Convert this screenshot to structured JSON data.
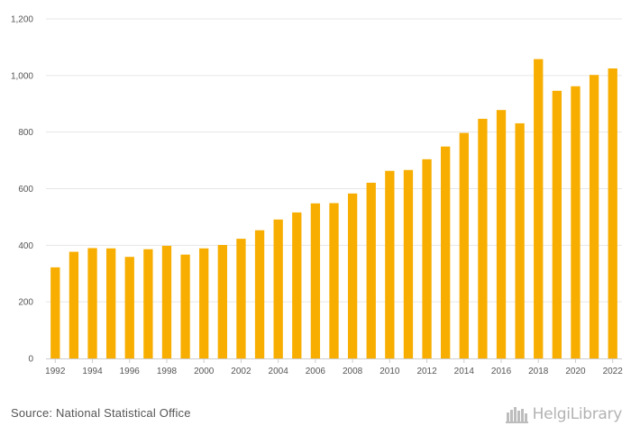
{
  "chart_data": {
    "type": "bar",
    "categories": [
      "1992",
      "1993",
      "1994",
      "1995",
      "1996",
      "1997",
      "1998",
      "1999",
      "2000",
      "2001",
      "2002",
      "2003",
      "2004",
      "2005",
      "2006",
      "2007",
      "2008",
      "2009",
      "2010",
      "2011",
      "2012",
      "2013",
      "2014",
      "2015",
      "2016",
      "2017",
      "2018",
      "2019",
      "2020",
      "2021",
      "2022"
    ],
    "x_tick_labels": [
      "1992",
      "1994",
      "1996",
      "1998",
      "2000",
      "2002",
      "2004",
      "2006",
      "2008",
      "2010",
      "2012",
      "2014",
      "2016",
      "2018",
      "2020",
      "2022"
    ],
    "series": [
      {
        "values": [
          322,
          377,
          390,
          389,
          359,
          386,
          398,
          367,
          389,
          401,
          423,
          453,
          491,
          516,
          548,
          549,
          583,
          621,
          663,
          666,
          704,
          749,
          797,
          847,
          878,
          831,
          1058,
          946,
          962,
          1002,
          1025
        ]
      }
    ],
    "y_ticks": [
      0,
      200,
      400,
      600,
      800,
      1000,
      1200
    ],
    "y_tick_labels": [
      "0",
      "200",
      "400",
      "600",
      "800",
      "1,000",
      "1,200"
    ],
    "ylim": [
      0,
      1200
    ],
    "title": "",
    "xlabel": "",
    "ylabel": "",
    "grid": true,
    "bar_color": "#f7ae00"
  },
  "footer": {
    "source": "Source: National Statistical Office",
    "brand": "HelgiLibrary"
  }
}
